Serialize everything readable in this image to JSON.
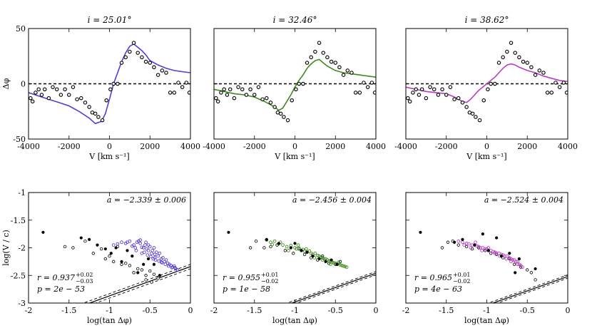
{
  "chart_data": [
    {
      "type": "line",
      "title": "i = 25.01°",
      "xlabel": "V [km s⁻¹]",
      "ylabel": "Δφ",
      "xlim": [
        -4000,
        4000
      ],
      "ylim": [
        -50,
        50
      ],
      "xticks": [
        "-4000",
        "-2000",
        "0",
        "2000",
        "4000"
      ],
      "yticks": [
        "-50",
        "0",
        "50"
      ],
      "line_color": "#5b3bd6",
      "series": [
        {
          "name": "model",
          "style": "line",
          "x": [
            -4000,
            -3500,
            -3000,
            -2500,
            -2000,
            -1500,
            -1000,
            -700,
            -400,
            -200,
            0,
            200,
            400,
            600,
            800,
            1000,
            1200,
            1400,
            1600,
            1800,
            2000,
            2400,
            2800,
            3200,
            3600,
            4000
          ],
          "y": [
            -8,
            -11,
            -14,
            -17,
            -20,
            -25,
            -31,
            -36,
            -34,
            -27,
            -14,
            0,
            10,
            20,
            28,
            34,
            36,
            33,
            30,
            26,
            21,
            17,
            14,
            12,
            11,
            10
          ]
        },
        {
          "name": "data",
          "style": "points",
          "x": [
            -3900,
            -3800,
            -3650,
            -3500,
            -3350,
            -3200,
            -3000,
            -2800,
            -2600,
            -2400,
            -2200,
            -2000,
            -1800,
            -1600,
            -1400,
            -1200,
            -1000,
            -850,
            -700,
            -550,
            -350,
            -150,
            50,
            200,
            400,
            600,
            800,
            1000,
            1200,
            1400,
            1600,
            1800,
            2000,
            2200,
            2400,
            2600,
            2800,
            3000,
            3200,
            3400,
            3600,
            3800,
            3950
          ],
          "y": [
            -13,
            -16,
            -8,
            -5,
            -10,
            -5,
            -13,
            -3,
            -5,
            -10,
            -5,
            -10,
            -3,
            -14,
            -13,
            -17,
            -21,
            -26,
            -27,
            -30,
            -33,
            -15,
            -5,
            0,
            0,
            19,
            24,
            29,
            37,
            28,
            24,
            20,
            19,
            15,
            8,
            12,
            10,
            -8,
            -8,
            1,
            -3,
            1,
            -8
          ]
        }
      ]
    },
    {
      "type": "line",
      "title": "i = 32.46°",
      "xlabel": "V [km s⁻¹]",
      "ylabel": "",
      "xlim": [
        -4000,
        4000
      ],
      "ylim": [
        -50,
        50
      ],
      "xticks": [
        "-4000",
        "-2000",
        "0",
        "2000",
        "4000"
      ],
      "yticks": [],
      "line_color": "#3e8a1e",
      "series": [
        {
          "name": "model",
          "style": "line",
          "x": [
            -4000,
            -3500,
            -3000,
            -2500,
            -2000,
            -1500,
            -1000,
            -800,
            -600,
            -400,
            -200,
            0,
            200,
            400,
            600,
            800,
            1000,
            1200,
            1400,
            1600,
            1800,
            2000,
            2400,
            2800,
            3200,
            3600,
            4000
          ],
          "y": [
            -5,
            -7,
            -9,
            -10,
            -12,
            -16,
            -21,
            -24,
            -22,
            -16,
            -10,
            -3,
            3,
            8,
            14,
            18,
            21,
            22,
            19,
            16,
            14,
            12,
            10,
            9,
            8,
            7,
            6
          ]
        },
        {
          "name": "data",
          "style": "points",
          "x": [
            -3900,
            -3800,
            -3650,
            -3500,
            -3350,
            -3200,
            -3000,
            -2800,
            -2600,
            -2400,
            -2200,
            -2000,
            -1800,
            -1600,
            -1400,
            -1200,
            -1000,
            -850,
            -700,
            -550,
            -350,
            -150,
            50,
            200,
            400,
            600,
            800,
            1000,
            1200,
            1400,
            1600,
            1800,
            2000,
            2200,
            2400,
            2600,
            2800,
            3000,
            3200,
            3400,
            3600,
            3800,
            3950
          ],
          "y": [
            -13,
            -16,
            -8,
            -5,
            -10,
            -5,
            -13,
            -3,
            -5,
            -10,
            -5,
            -10,
            -3,
            -14,
            -13,
            -17,
            -21,
            -26,
            -27,
            -30,
            -33,
            -15,
            -5,
            0,
            0,
            19,
            24,
            29,
            37,
            28,
            24,
            20,
            19,
            15,
            8,
            12,
            10,
            -8,
            -8,
            1,
            -3,
            1,
            -8
          ]
        }
      ]
    },
    {
      "type": "line",
      "title": "i = 38.62°",
      "xlabel": "V [km s⁻¹]",
      "ylabel": "",
      "xlim": [
        -4000,
        4000
      ],
      "ylim": [
        -50,
        50
      ],
      "xticks": [
        "-4000",
        "-2000",
        "0",
        "2000",
        "4000"
      ],
      "yticks": [],
      "line_color": "#b93cc4",
      "series": [
        {
          "name": "model",
          "style": "line",
          "x": [
            -4000,
            -3500,
            -3000,
            -2500,
            -2000,
            -1600,
            -1200,
            -1000,
            -800,
            -600,
            -400,
            -200,
            0,
            200,
            400,
            600,
            800,
            1000,
            1200,
            1400,
            1600,
            2000,
            2400,
            2800,
            3200,
            3600,
            4000
          ],
          "y": [
            -3,
            -5,
            -7,
            -8,
            -9,
            -12,
            -16,
            -17,
            -14,
            -10,
            -6,
            -3,
            0,
            3,
            6,
            10,
            14,
            17,
            18,
            17,
            15,
            12,
            10,
            7,
            5,
            3,
            2
          ]
        },
        {
          "name": "data",
          "style": "points",
          "x": [
            -3900,
            -3800,
            -3650,
            -3500,
            -3350,
            -3200,
            -3000,
            -2800,
            -2600,
            -2400,
            -2200,
            -2000,
            -1800,
            -1600,
            -1400,
            -1200,
            -1000,
            -850,
            -700,
            -550,
            -350,
            -150,
            50,
            200,
            400,
            600,
            800,
            1000,
            1200,
            1400,
            1600,
            1800,
            2000,
            2200,
            2400,
            2600,
            2800,
            3000,
            3200,
            3400,
            3600,
            3800,
            3950
          ],
          "y": [
            -13,
            -16,
            -8,
            -5,
            -10,
            -5,
            -13,
            -3,
            -5,
            -10,
            -5,
            -10,
            -3,
            -14,
            -13,
            -17,
            -21,
            -26,
            -27,
            -30,
            -33,
            -15,
            -5,
            0,
            0,
            19,
            24,
            29,
            37,
            28,
            24,
            20,
            19,
            15,
            8,
            12,
            10,
            -8,
            -8,
            1,
            -3,
            1,
            -8
          ]
        }
      ]
    },
    {
      "type": "scatter",
      "title": "",
      "xlabel": "log(tan Δφ)",
      "ylabel": "log(V / c)",
      "xlim": [
        -2,
        0
      ],
      "ylim": [
        -3,
        -1
      ],
      "xticks": [
        "-2",
        "-1.5",
        "-1",
        "-0.5",
        "0"
      ],
      "yticks": [
        "-1",
        "-1.5",
        "-2",
        "-2.5",
        "-3"
      ],
      "color": "#5b3bd6",
      "fit": {
        "label": "a = −2.339 ± 0.006",
        "slope": 0.53,
        "intercept": -2.34,
        "band": 0.04
      },
      "stats": {
        "r": "r = 0.937",
        "r_sup": "+0.02",
        "r_sub": "−0.03",
        "p": "p = 2e − 53"
      },
      "colored_points": {
        "x": [
          -0.95,
          -0.9,
          -0.85,
          -0.8,
          -0.78,
          -0.75,
          -0.72,
          -0.7,
          -0.68,
          -0.66,
          -0.64,
          -0.62,
          -0.6,
          -0.58,
          -0.56,
          -0.55,
          -0.54,
          -0.52,
          -0.5,
          -0.48,
          -0.47,
          -0.45,
          -0.44,
          -0.42,
          -0.4,
          -0.38,
          -0.36,
          -0.34,
          -0.32,
          -0.3,
          -0.28,
          -0.26,
          -0.24,
          -0.22,
          -0.2,
          -0.18,
          -0.16,
          -0.62,
          -0.57,
          -0.53,
          -0.49,
          -0.46,
          -0.43,
          -0.39,
          -0.35,
          -0.31,
          -0.27,
          -0.23,
          -0.19,
          -0.67,
          -0.6,
          -0.52,
          -0.44,
          -0.36
        ],
        "y": [
          -1.95,
          -1.93,
          -1.9,
          -1.92,
          -1.9,
          -1.88,
          -1.97,
          -1.95,
          -2.0,
          -1.9,
          -1.88,
          -1.92,
          -1.99,
          -2.0,
          -1.95,
          -1.9,
          -2.02,
          -2.05,
          -1.98,
          -2.1,
          -2.05,
          -2.0,
          -2.12,
          -2.08,
          -2.15,
          -2.1,
          -2.2,
          -2.18,
          -2.25,
          -2.22,
          -2.28,
          -2.3,
          -2.32,
          -2.35,
          -2.33,
          -2.38,
          -2.4,
          -1.86,
          -2.08,
          -2.13,
          -2.16,
          -2.2,
          -2.22,
          -2.24,
          -2.27,
          -2.3,
          -2.33,
          -2.36,
          -2.36,
          -2.05,
          -2.1,
          -1.95,
          -2.18,
          -2.26
        ]
      },
      "filled_points": {
        "x": [
          -1.82,
          -1.35,
          -1.25,
          -1.15,
          -1.05,
          -0.98,
          -0.92,
          -0.85,
          -0.78,
          -0.72,
          -0.65,
          -0.58,
          -0.52,
          -0.45,
          -0.38
        ],
        "y": [
          -1.72,
          -1.82,
          -1.85,
          -1.95,
          -2.02,
          -2.1,
          -2.0,
          -2.25,
          -2.05,
          -2.15,
          -2.45,
          -2.3,
          -2.2,
          -2.3,
          -2.5
        ]
      },
      "open_points": {
        "x": [
          -1.55,
          -1.45,
          -1.3,
          -1.2,
          -1.1,
          -1.05,
          -1.0,
          -0.95,
          -0.9,
          -0.85,
          -0.8,
          -0.75,
          -0.7,
          -0.65,
          -0.6,
          -0.55,
          -0.5,
          -0.45,
          -0.4,
          -0.55,
          -0.48
        ],
        "y": [
          -1.98,
          -2.0,
          -1.88,
          -2.1,
          -2.02,
          -2.2,
          -2.15,
          -2.25,
          -1.98,
          -2.3,
          -2.28,
          -2.32,
          -2.45,
          -2.38,
          -2.4,
          -2.5,
          -2.42,
          -2.48,
          -2.55,
          -2.58,
          -2.62
        ]
      }
    },
    {
      "type": "scatter",
      "title": "",
      "xlabel": "log(tan Δφ)",
      "ylabel": "",
      "xlim": [
        -2,
        0
      ],
      "ylim": [
        -3,
        -1
      ],
      "xticks": [
        "-2",
        "-1.5",
        "-1",
        "-0.5",
        "0"
      ],
      "yticks": [],
      "color": "#3e8a1e",
      "fit": {
        "label": "a = −2.456 ± 0.004",
        "slope": 0.52,
        "intercept": -2.46,
        "band": 0.03
      },
      "stats": {
        "r": "r = 0.955",
        "r_sup": "+0.01",
        "r_sub": "−0.02",
        "p": "p = 1e − 58"
      },
      "colored_points": {
        "x": [
          -1.35,
          -1.3,
          -1.25,
          -1.2,
          -1.15,
          -1.1,
          -1.05,
          -1.0,
          -0.98,
          -0.95,
          -0.92,
          -0.9,
          -0.88,
          -0.85,
          -0.82,
          -0.8,
          -0.78,
          -0.75,
          -0.72,
          -0.7,
          -0.68,
          -0.66,
          -0.64,
          -0.62,
          -0.6,
          -0.58,
          -0.56,
          -0.54,
          -0.52,
          -0.5,
          -0.48,
          -0.46,
          -0.44,
          -0.42,
          -0.4,
          -0.38,
          -0.36,
          -1.28,
          -1.18,
          -1.08,
          -0.96,
          -0.86,
          -0.76,
          -0.66,
          -0.56,
          -0.46
        ],
        "y": [
          -1.86,
          -1.9,
          -1.88,
          -1.93,
          -1.95,
          -1.98,
          -1.96,
          -2.0,
          -2.02,
          -2.0,
          -2.05,
          -2.03,
          -2.06,
          -2.08,
          -2.06,
          -2.1,
          -2.12,
          -2.1,
          -2.14,
          -2.15,
          -2.17,
          -2.18,
          -2.2,
          -2.2,
          -2.22,
          -2.24,
          -2.25,
          -2.26,
          -2.27,
          -2.28,
          -2.3,
          -2.29,
          -2.31,
          -2.32,
          -2.33,
          -2.34,
          -2.35,
          -1.94,
          -1.9,
          -2.05,
          -1.95,
          -2.02,
          -2.18,
          -2.22,
          -2.3,
          -2.26
        ]
      },
      "filled_points": {
        "x": [
          -1.82,
          -1.35,
          -1.2,
          -1.05,
          -1.0,
          -0.92,
          -0.85,
          -0.78,
          -0.7,
          -0.62,
          -0.55,
          -0.48
        ],
        "y": [
          -1.72,
          -1.85,
          -1.92,
          -2.0,
          -1.92,
          -2.05,
          -2.08,
          -2.15,
          -2.2,
          -2.25,
          -2.22,
          -2.3
        ]
      },
      "open_points": {
        "x": [
          -1.55,
          -1.48,
          -1.38,
          -1.3,
          -1.22,
          -1.12,
          -1.02,
          -0.95,
          -0.88,
          -0.8,
          -0.72,
          -0.66,
          -0.58,
          -0.5,
          -0.44
        ],
        "y": [
          -2.0,
          -1.88,
          -2.0,
          -1.98,
          -1.95,
          -2.05,
          -2.1,
          -2.02,
          -2.12,
          -2.18,
          -2.22,
          -2.15,
          -2.28,
          -2.3,
          -2.25
        ]
      }
    },
    {
      "type": "scatter",
      "title": "",
      "xlabel": "log(tan Δφ)",
      "ylabel": "",
      "xlim": [
        -2,
        0
      ],
      "ylim": [
        -3,
        -1
      ],
      "xticks": [
        "-2",
        "-1.5",
        "-1",
        "-0.5",
        "0"
      ],
      "yticks": [],
      "color": "#b93cc4",
      "fit": {
        "label": "a = −2.524 ± 0.004",
        "slope": 0.52,
        "intercept": -2.52,
        "band": 0.03
      },
      "stats": {
        "r": "r = 0.965",
        "r_sup": "+0.01",
        "r_sub": "−0.02",
        "p": "p = 4e − 63"
      },
      "colored_points": {
        "x": [
          -1.35,
          -1.3,
          -1.25,
          -1.22,
          -1.18,
          -1.15,
          -1.12,
          -1.1,
          -1.08,
          -1.05,
          -1.02,
          -1.0,
          -0.98,
          -0.95,
          -0.92,
          -0.9,
          -0.88,
          -0.85,
          -0.82,
          -0.8,
          -0.78,
          -0.75,
          -0.72,
          -0.7,
          -0.68,
          -0.66,
          -0.64,
          -0.62,
          -0.6,
          -0.58,
          -0.56,
          -1.28,
          -1.2,
          -1.14,
          -1.06,
          -0.98,
          -0.9,
          -0.84,
          -0.76,
          -0.7,
          -0.62
        ],
        "y": [
          -1.88,
          -1.9,
          -1.92,
          -1.93,
          -1.95,
          -1.95,
          -1.97,
          -1.98,
          -2.0,
          -2.0,
          -2.02,
          -2.02,
          -2.05,
          -2.05,
          -2.07,
          -2.08,
          -2.1,
          -2.1,
          -2.12,
          -2.13,
          -2.15,
          -2.15,
          -2.18,
          -2.2,
          -2.22,
          -2.22,
          -2.25,
          -2.25,
          -2.3,
          -2.32,
          -2.35,
          -1.95,
          -2.0,
          -1.9,
          -2.05,
          -2.0,
          -2.1,
          -2.15,
          -2.2,
          -2.25,
          -2.3
        ]
      },
      "filled_points": {
        "x": [
          -1.82,
          -1.4,
          -1.3,
          -1.15,
          -1.05,
          -0.98,
          -0.88,
          -0.82,
          -0.72,
          -0.65,
          -0.6,
          -0.4
        ],
        "y": [
          -1.72,
          -1.9,
          -1.85,
          -1.95,
          -1.75,
          -2.05,
          -1.82,
          -2.15,
          -2.1,
          -2.45,
          -2.2,
          -2.38
        ]
      },
      "open_points": {
        "x": [
          -1.55,
          -1.48,
          -1.42,
          -1.35,
          -1.25,
          -1.18,
          -1.1,
          -1.02,
          -0.95,
          -0.88,
          -0.8,
          -0.72,
          -0.66,
          -0.58,
          -0.5,
          -0.45,
          -0.4
        ],
        "y": [
          -2.0,
          -1.9,
          -1.88,
          -1.95,
          -1.98,
          -2.02,
          -2.0,
          -2.05,
          -2.1,
          -2.12,
          -2.18,
          -2.2,
          -2.3,
          -2.35,
          -2.4,
          -2.45,
          -2.58
        ]
      }
    }
  ]
}
